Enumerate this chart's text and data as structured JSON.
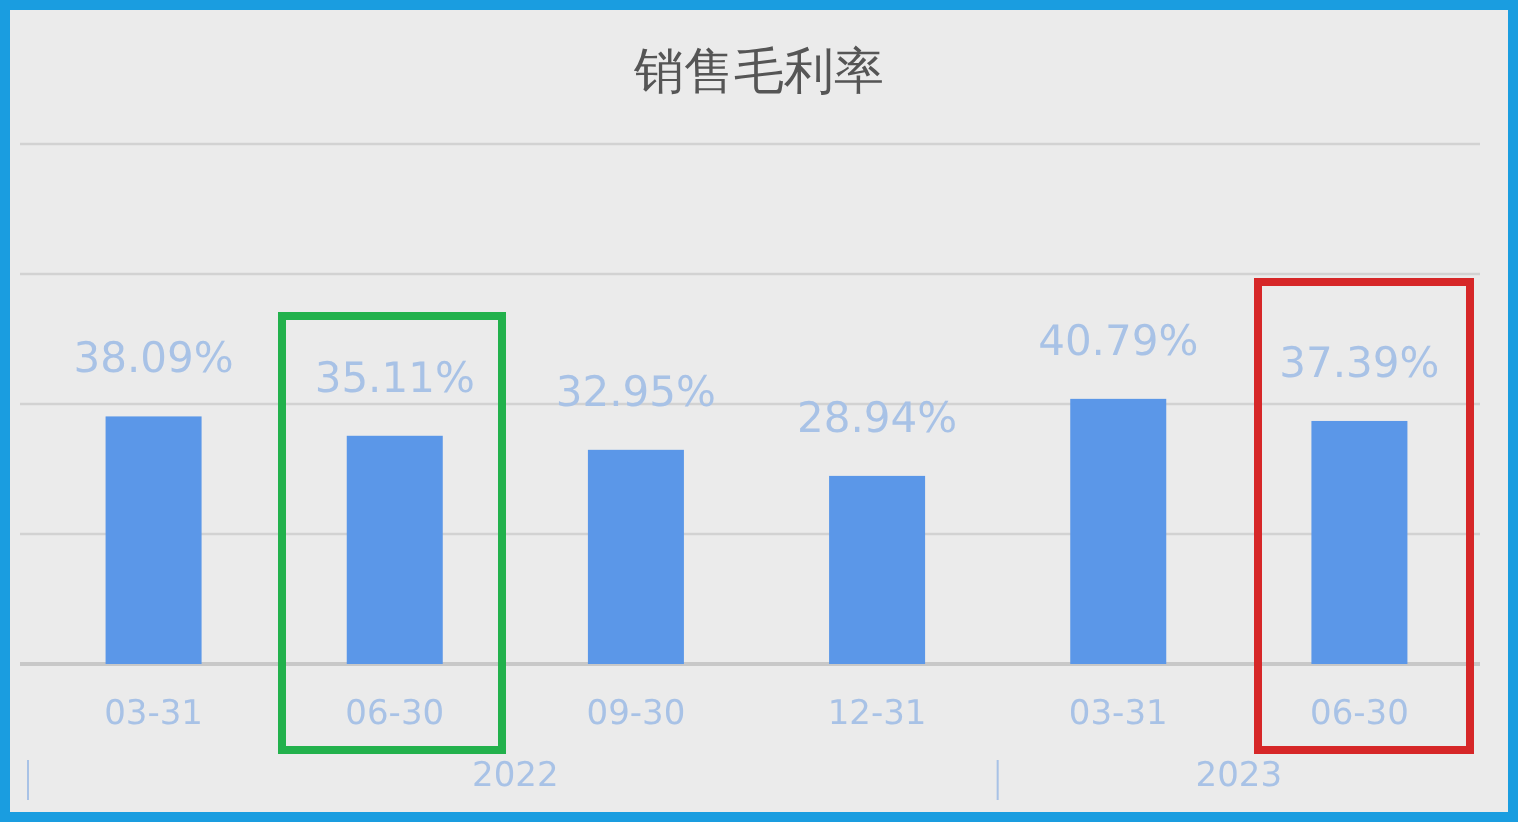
{
  "chart_data": {
    "type": "bar",
    "title": "销售毛利率",
    "categories": [
      "03-31",
      "06-30",
      "09-30",
      "12-31",
      "03-31",
      "06-30"
    ],
    "values": [
      38.09,
      35.11,
      32.95,
      28.94,
      40.79,
      37.39
    ],
    "value_labels": [
      "38.09%",
      "35.11%",
      "32.95%",
      "28.94%",
      "40.79%",
      "37.39%"
    ],
    "color": "#5b97e8",
    "ylim": [
      0,
      80
    ],
    "yticks": [
      {
        "value": 0,
        "label": null
      },
      {
        "value": 20,
        "label": null
      },
      {
        "value": 40,
        "label": null
      },
      {
        "value": 60,
        "label": null
      },
      {
        "value": 80,
        "label": null
      }
    ],
    "grid": "y",
    "annotations": [
      "2022",
      "2023"
    ]
  }
}
